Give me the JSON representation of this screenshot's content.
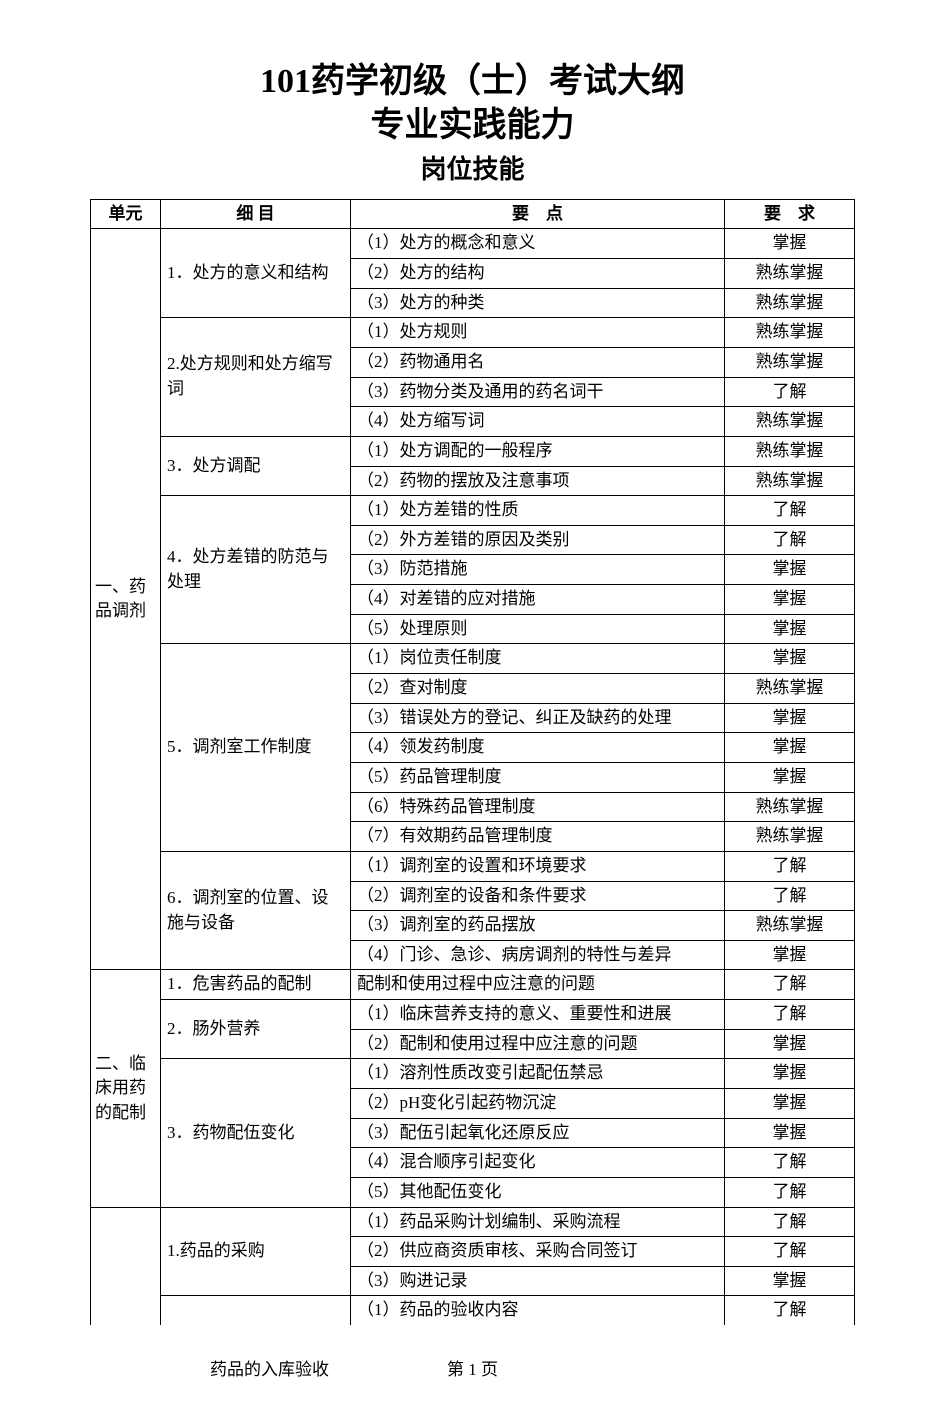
{
  "title": {
    "main": "101药学初级（士）考试大纲",
    "sub": "专业实践能力",
    "section": "岗位技能"
  },
  "headers": {
    "unit": "单元",
    "item": "细 目",
    "point": "要　点",
    "req": "要　求"
  },
  "units": [
    {
      "name": "一、药品调剂",
      "items": [
        {
          "name": "1．处方的意义和结构",
          "points": [
            {
              "text": "（1）处方的概念和意义",
              "req": "掌握"
            },
            {
              "text": "（2）处方的结构",
              "req": "熟练掌握"
            },
            {
              "text": "（3）处方的种类",
              "req": "熟练掌握"
            }
          ]
        },
        {
          "name": "2.处方规则和处方缩写词",
          "points": [
            {
              "text": "（1）处方规则",
              "req": "熟练掌握"
            },
            {
              "text": "（2）药物通用名",
              "req": "熟练掌握"
            },
            {
              "text": "（3）药物分类及通用的药名词干",
              "req": "了解"
            },
            {
              "text": "（4）处方缩写词",
              "req": "熟练掌握"
            }
          ]
        },
        {
          "name": "3．处方调配",
          "points": [
            {
              "text": "（1）处方调配的一般程序",
              "req": "熟练掌握"
            },
            {
              "text": "（2）药物的摆放及注意事项",
              "req": "熟练掌握"
            }
          ]
        },
        {
          "name": "4．处方差错的防范与处理",
          "points": [
            {
              "text": "（1）处方差错的性质",
              "req": "了解"
            },
            {
              "text": "（2）外方差错的原因及类别",
              "req": "了解"
            },
            {
              "text": "（3）防范措施",
              "req": "掌握"
            },
            {
              "text": "（4）对差错的应对措施",
              "req": "掌握"
            },
            {
              "text": "（5）处理原则",
              "req": "掌握"
            }
          ]
        },
        {
          "name": "5．调剂室工作制度",
          "points": [
            {
              "text": "（1）岗位责任制度",
              "req": "掌握"
            },
            {
              "text": "（2）查对制度",
              "req": "熟练掌握"
            },
            {
              "text": "（3）错误处方的登记、纠正及缺药的处理",
              "req": "掌握"
            },
            {
              "text": "（4）领发药制度",
              "req": "掌握"
            },
            {
              "text": "（5）药品管理制度",
              "req": "掌握"
            },
            {
              "text": "（6）特殊药品管理制度",
              "req": "熟练掌握"
            },
            {
              "text": "（7）有效期药品管理制度",
              "req": "熟练掌握"
            }
          ]
        },
        {
          "name": "6．调剂室的位置、设施与设备",
          "points": [
            {
              "text": "（1）调剂室的设置和环境要求",
              "req": "了解"
            },
            {
              "text": "（2）调剂室的设备和条件要求",
              "req": "了解"
            },
            {
              "text": "（3）调剂室的药品摆放",
              "req": "熟练掌握"
            },
            {
              "text": "（4）门诊、急诊、病房调剂的特性与差异",
              "req": "掌握"
            }
          ]
        }
      ]
    },
    {
      "name": "二、临床用药的配制",
      "items": [
        {
          "name": "1．危害药品的配制",
          "points": [
            {
              "text": "配制和使用过程中应注意的问题",
              "req": "了解"
            }
          ]
        },
        {
          "name": "2．肠外营养",
          "points": [
            {
              "text": "（1）临床营养支持的意义、重要性和进展",
              "req": "了解"
            },
            {
              "text": "（2）配制和使用过程中应注意的问题",
              "req": "掌握"
            }
          ]
        },
        {
          "name": "3．药物配伍变化",
          "points": [
            {
              "text": "（1）溶剂性质改变引起配伍禁忌",
              "req": "掌握"
            },
            {
              "text": "（2）pH变化引起药物沉淀",
              "req": "掌握"
            },
            {
              "text": "（3）配伍引起氧化还原反应",
              "req": "掌握"
            },
            {
              "text": "（4）混合顺序引起变化",
              "req": "了解"
            },
            {
              "text": "（5）其他配伍变化",
              "req": "了解"
            }
          ]
        }
      ]
    },
    {
      "name": "",
      "openBottom": true,
      "items": [
        {
          "name": "1.药品的采购",
          "points": [
            {
              "text": "（1）药品采购计划编制、采购流程",
              "req": "了解"
            },
            {
              "text": "（2）供应商资质审核、采购合同签订",
              "req": "了解"
            },
            {
              "text": "（3）购进记录",
              "req": "掌握"
            }
          ]
        },
        {
          "name": "",
          "openBottom": true,
          "points": [
            {
              "text": "（1）药品的验收内容",
              "req": "了解",
              "openBottom": true
            }
          ]
        }
      ]
    }
  ],
  "footer": {
    "left": "药品的入库验收",
    "center": "第 1 页"
  }
}
